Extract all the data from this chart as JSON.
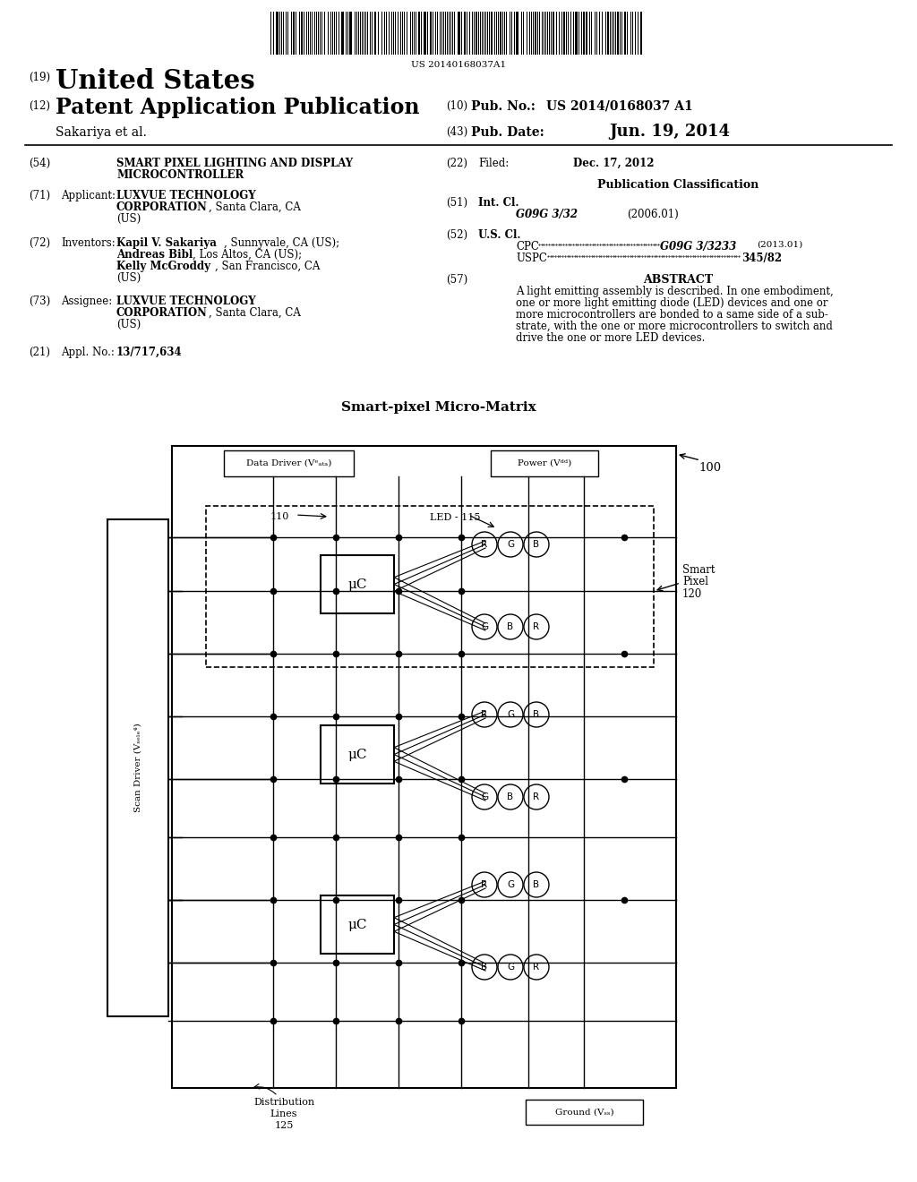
{
  "barcode_text": "US 20140168037A1",
  "country": "United States",
  "patent_type": "Patent Application Publication",
  "pub_no": "US 2014/0168037 A1",
  "pub_date": "Jun. 19, 2014",
  "author": "Sakariya et al.",
  "field_22_date": "Dec. 17, 2012",
  "pub_class_header": "Publication Classification",
  "field_51_val1": "G09G 3/32",
  "field_51_val2": "(2006.01)",
  "field_52_cpc": "G09G 3/3233",
  "field_52_cpc_year": "(2013.01)",
  "field_52_uspc": "345/82",
  "field_57_header": "ABSTRACT",
  "abstract_lines": [
    "A light emitting assembly is described. In one embodiment,",
    "one or more light emitting diode (LED) devices and one or",
    "more microcontrollers are bonded to a same side of a sub-",
    "strate, with the one or more microcontrollers to switch and",
    "drive the one or more LED devices."
  ],
  "diagram_title": "Smart-pixel Micro-Matrix",
  "bg_color": "#ffffff"
}
